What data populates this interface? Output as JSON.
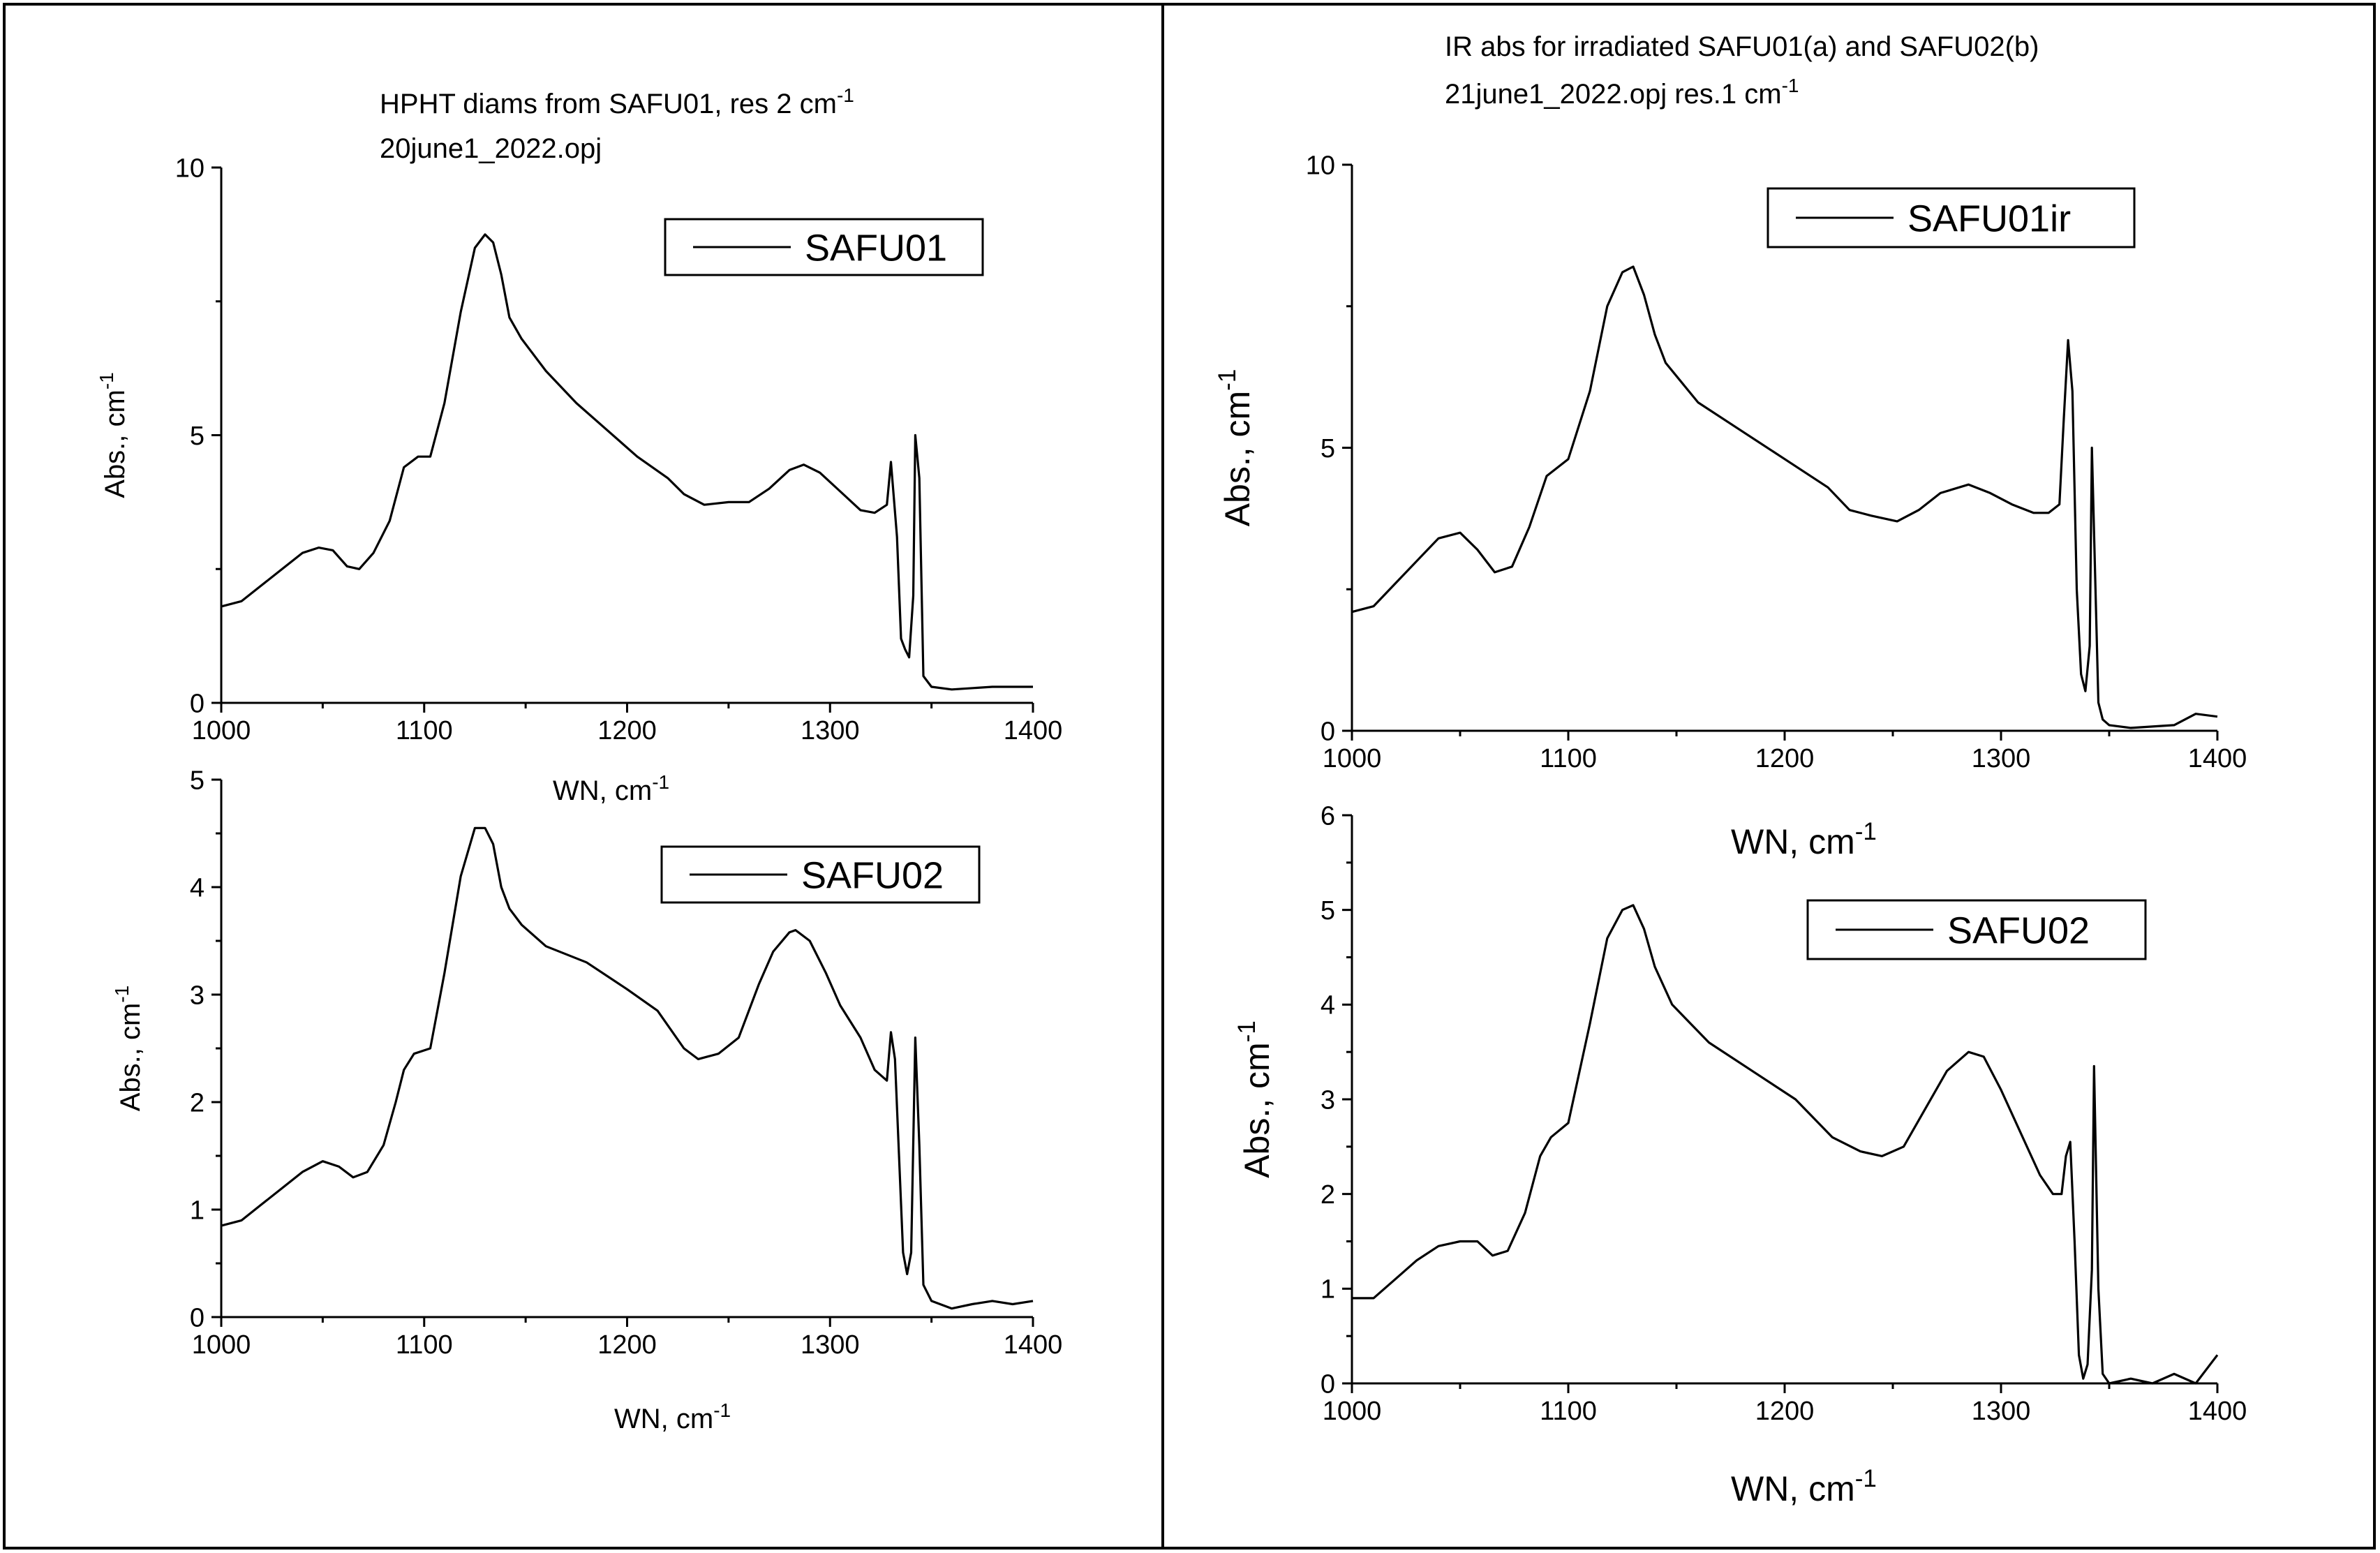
{
  "panels": [
    {
      "id": "left",
      "title_line1": "HPHT diams from SAFU01, res 2 cm",
      "title_line1_sup": "-1",
      "title_line2": "20june1_2022.opj"
    },
    {
      "id": "right",
      "title_line1": "IR abs for irradiated SAFU01(a) and SAFU02(b)",
      "title_line2": "21june1_2022.opj  res.1 cm",
      "title_line2_sup": "-1"
    }
  ],
  "chart_data": [
    {
      "id": "left-top",
      "type": "line",
      "title": "HPHT diams from SAFU01, res 2 cm-1 / 20june1_2022.opj",
      "xlabel": "WN, cm",
      "xlabel_sup": "-1",
      "ylabel": "Abs., cm",
      "ylabel_sup": "-1",
      "xlim": [
        1000,
        1400
      ],
      "ylim": [
        0,
        10
      ],
      "xticks": [
        1000,
        1100,
        1200,
        1300,
        1400
      ],
      "yticks": [
        0,
        5,
        10
      ],
      "legend": "SAFU01",
      "legend_position": "top-right",
      "series": [
        {
          "name": "SAFU01",
          "x": [
            1000,
            1010,
            1020,
            1030,
            1040,
            1048,
            1055,
            1062,
            1068,
            1075,
            1083,
            1090,
            1097,
            1103,
            1110,
            1118,
            1125,
            1130,
            1134,
            1138,
            1142,
            1148,
            1160,
            1175,
            1190,
            1205,
            1220,
            1228,
            1238,
            1250,
            1260,
            1270,
            1280,
            1287,
            1295,
            1305,
            1315,
            1322,
            1328,
            1330,
            1333,
            1335,
            1337,
            1339,
            1341,
            1342,
            1344,
            1346,
            1350,
            1360,
            1380,
            1400
          ],
          "y": [
            1.8,
            1.9,
            2.2,
            2.5,
            2.8,
            2.9,
            2.85,
            2.55,
            2.5,
            2.8,
            3.4,
            4.4,
            4.6,
            4.6,
            5.6,
            7.3,
            8.5,
            8.75,
            8.6,
            8.0,
            7.2,
            6.8,
            6.2,
            5.6,
            5.1,
            4.6,
            4.2,
            3.9,
            3.7,
            3.75,
            3.75,
            4.0,
            4.35,
            4.45,
            4.3,
            3.95,
            3.6,
            3.55,
            3.7,
            4.5,
            3.1,
            1.2,
            1.0,
            0.85,
            2.0,
            5.0,
            4.2,
            0.5,
            0.3,
            0.25,
            0.3,
            0.3
          ]
        }
      ]
    },
    {
      "id": "left-bottom",
      "type": "line",
      "title": "",
      "xlabel": "WN, cm",
      "xlabel_sup": "-1",
      "ylabel": "Abs., cm",
      "ylabel_sup": "-1",
      "xlim": [
        1000,
        1400
      ],
      "ylim": [
        0,
        5
      ],
      "xticks": [
        1000,
        1100,
        1200,
        1300,
        1400
      ],
      "yticks": [
        0,
        1,
        2,
        3,
        4,
        5
      ],
      "legend": "SAFU02",
      "legend_position": "top-right",
      "series": [
        {
          "name": "SAFU02",
          "x": [
            1000,
            1010,
            1020,
            1030,
            1040,
            1050,
            1058,
            1065,
            1072,
            1080,
            1086,
            1090,
            1095,
            1103,
            1110,
            1118,
            1125,
            1130,
            1134,
            1138,
            1142,
            1148,
            1160,
            1180,
            1200,
            1215,
            1228,
            1235,
            1245,
            1255,
            1265,
            1272,
            1280,
            1283,
            1290,
            1298,
            1305,
            1315,
            1322,
            1328,
            1330,
            1332,
            1334,
            1336,
            1338,
            1340,
            1342,
            1344,
            1346,
            1350,
            1360,
            1370,
            1380,
            1390,
            1400
          ],
          "y": [
            0.85,
            0.9,
            1.05,
            1.2,
            1.35,
            1.45,
            1.4,
            1.3,
            1.35,
            1.6,
            2.0,
            2.3,
            2.45,
            2.5,
            3.2,
            4.1,
            4.55,
            4.55,
            4.4,
            4.0,
            3.8,
            3.65,
            3.45,
            3.3,
            3.05,
            2.85,
            2.5,
            2.4,
            2.45,
            2.6,
            3.1,
            3.4,
            3.58,
            3.6,
            3.5,
            3.2,
            2.9,
            2.6,
            2.3,
            2.2,
            2.65,
            2.4,
            1.5,
            0.6,
            0.4,
            0.6,
            2.6,
            1.6,
            0.3,
            0.15,
            0.08,
            0.12,
            0.15,
            0.12,
            0.15
          ]
        }
      ]
    },
    {
      "id": "right-top",
      "type": "line",
      "title": "IR abs for irradiated SAFU01(a) and SAFU02(b) / 21june1_2022.opj res.1 cm-1",
      "xlabel": "WN, cm",
      "xlabel_sup": "-1",
      "ylabel": "Abs., cm",
      "ylabel_sup": "-1",
      "xlim": [
        1000,
        1400
      ],
      "ylim": [
        0,
        10
      ],
      "xticks": [
        1000,
        1100,
        1200,
        1300,
        1400
      ],
      "yticks": [
        0,
        5,
        10
      ],
      "legend": "SAFU01ir",
      "legend_position": "top-right",
      "series": [
        {
          "name": "SAFU01ir",
          "x": [
            1000,
            1010,
            1020,
            1030,
            1040,
            1050,
            1058,
            1066,
            1074,
            1082,
            1090,
            1100,
            1110,
            1118,
            1125,
            1130,
            1135,
            1140,
            1145,
            1160,
            1180,
            1200,
            1220,
            1230,
            1240,
            1252,
            1262,
            1272,
            1285,
            1295,
            1305,
            1315,
            1322,
            1327,
            1329,
            1331,
            1333,
            1335,
            1337,
            1339,
            1341,
            1342,
            1343,
            1345,
            1347,
            1350,
            1360,
            1380,
            1390,
            1400
          ],
          "y": [
            2.1,
            2.2,
            2.6,
            3.0,
            3.4,
            3.5,
            3.2,
            2.8,
            2.9,
            3.6,
            4.5,
            4.8,
            6.0,
            7.5,
            8.1,
            8.2,
            7.7,
            7.0,
            6.5,
            5.8,
            5.3,
            4.8,
            4.3,
            3.9,
            3.8,
            3.7,
            3.9,
            4.2,
            4.35,
            4.2,
            4.0,
            3.85,
            3.85,
            4.0,
            5.5,
            6.9,
            6.0,
            2.5,
            1.0,
            0.7,
            1.5,
            5.0,
            3.5,
            0.5,
            0.2,
            0.1,
            0.05,
            0.1,
            0.3,
            0.25
          ]
        }
      ]
    },
    {
      "id": "right-bottom",
      "type": "line",
      "title": "",
      "xlabel": "WN, cm",
      "xlabel_sup": "-1",
      "ylabel": "Abs., cm",
      "ylabel_sup": "-1",
      "xlim": [
        1000,
        1400
      ],
      "ylim": [
        0,
        6
      ],
      "xticks": [
        1000,
        1100,
        1200,
        1300,
        1400
      ],
      "yticks": [
        0,
        1,
        2,
        3,
        4,
        5,
        6
      ],
      "legend": "SAFU02",
      "legend_position": "top-right",
      "series": [
        {
          "name": "SAFU02",
          "x": [
            1000,
            1010,
            1020,
            1030,
            1040,
            1050,
            1058,
            1065,
            1072,
            1080,
            1087,
            1092,
            1100,
            1110,
            1118,
            1125,
            1130,
            1135,
            1140,
            1148,
            1165,
            1185,
            1205,
            1222,
            1235,
            1245,
            1255,
            1265,
            1275,
            1285,
            1292,
            1300,
            1310,
            1318,
            1324,
            1328,
            1330,
            1332,
            1334,
            1336,
            1338,
            1340,
            1342,
            1343,
            1345,
            1347,
            1350,
            1360,
            1370,
            1380,
            1390,
            1400
          ],
          "y": [
            0.9,
            0.9,
            1.1,
            1.3,
            1.45,
            1.5,
            1.5,
            1.35,
            1.4,
            1.8,
            2.4,
            2.6,
            2.75,
            3.8,
            4.7,
            5.0,
            5.05,
            4.8,
            4.4,
            4.0,
            3.6,
            3.3,
            3.0,
            2.6,
            2.45,
            2.4,
            2.5,
            2.9,
            3.3,
            3.5,
            3.45,
            3.1,
            2.6,
            2.2,
            2.0,
            2.0,
            2.4,
            2.55,
            1.5,
            0.3,
            0.05,
            0.2,
            1.2,
            3.35,
            1.0,
            0.1,
            0.0,
            0.05,
            0.0,
            0.1,
            0.0,
            0.3
          ]
        }
      ]
    }
  ]
}
